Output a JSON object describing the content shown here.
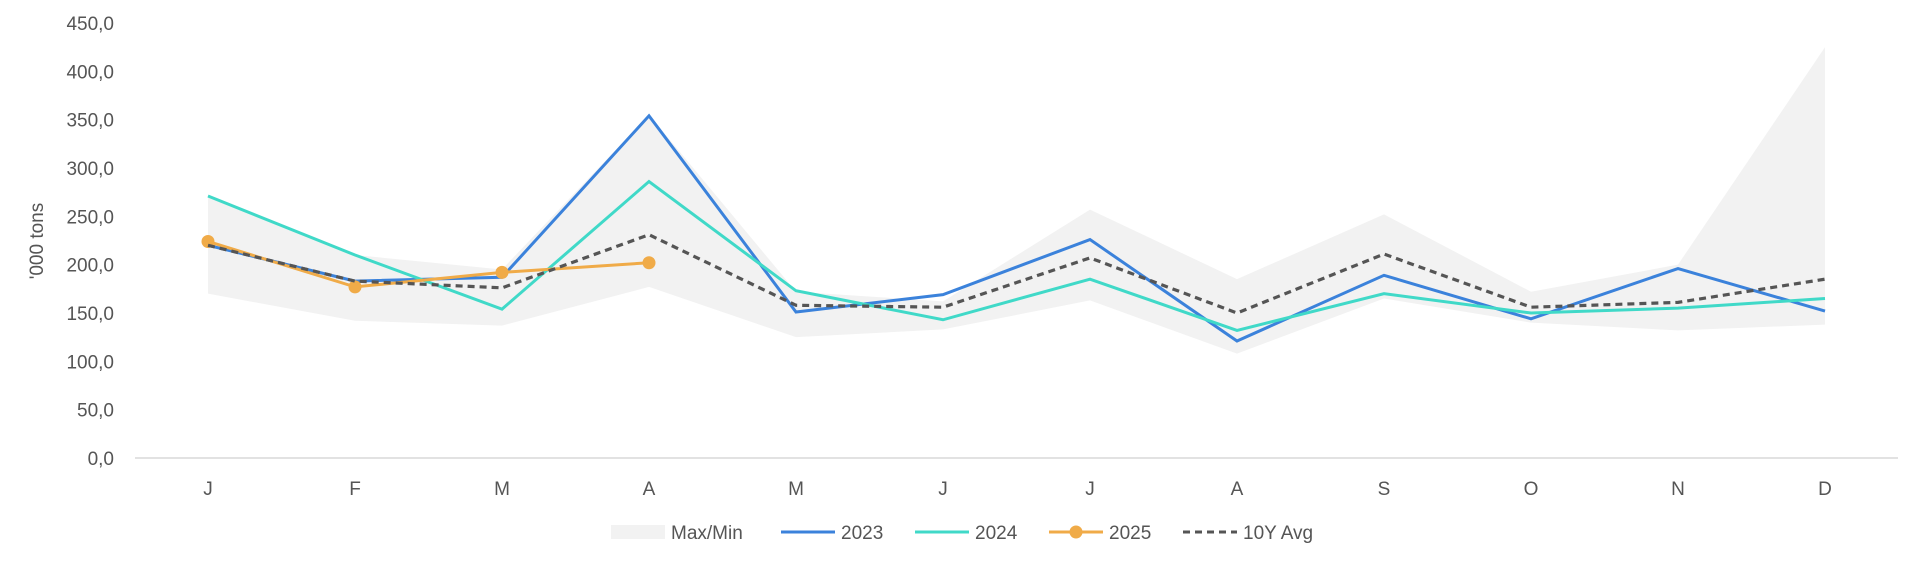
{
  "chart_data": {
    "type": "line",
    "title": "",
    "xlabel": "",
    "ylabel": "'000 tons",
    "categories": [
      "J",
      "F",
      "M",
      "A",
      "M",
      "J",
      "J",
      "A",
      "S",
      "O",
      "N",
      "D"
    ],
    "ylim": [
      0,
      450
    ],
    "yticks": [
      "0,0",
      "50,0",
      "100,0",
      "150,0",
      "200,0",
      "250,0",
      "300,0",
      "350,0",
      "400,0",
      "450,0"
    ],
    "grid": false,
    "legend_position": "bottom",
    "band": {
      "name": "Max/Min",
      "max": [
        272,
        210,
        195,
        355,
        172,
        162,
        257,
        185,
        252,
        172,
        200,
        425
      ],
      "min": [
        170,
        142,
        137,
        177,
        125,
        133,
        163,
        108,
        165,
        140,
        132,
        138
      ],
      "color": "#f2f2f2"
    },
    "series": [
      {
        "name": "2023",
        "color": "#3b82db",
        "style": "solid",
        "markers": false,
        "values": [
          220,
          183,
          187,
          354,
          151,
          169,
          226,
          121,
          189,
          144,
          196,
          152
        ]
      },
      {
        "name": "2024",
        "color": "#40d9c8",
        "style": "solid",
        "markers": false,
        "values": [
          271,
          210,
          154,
          286,
          173,
          143,
          185,
          132,
          170,
          150,
          155,
          165
        ]
      },
      {
        "name": "2025",
        "color": "#f0ab48",
        "style": "solid",
        "markers": true,
        "values": [
          224,
          177,
          192,
          202,
          null,
          null,
          null,
          null,
          null,
          null,
          null,
          null
        ]
      },
      {
        "name": "10Y Avg",
        "color": "#555555",
        "style": "dashed",
        "markers": false,
        "values": [
          220,
          183,
          176,
          231,
          158,
          156,
          207,
          150,
          211,
          156,
          161,
          185
        ]
      }
    ]
  }
}
